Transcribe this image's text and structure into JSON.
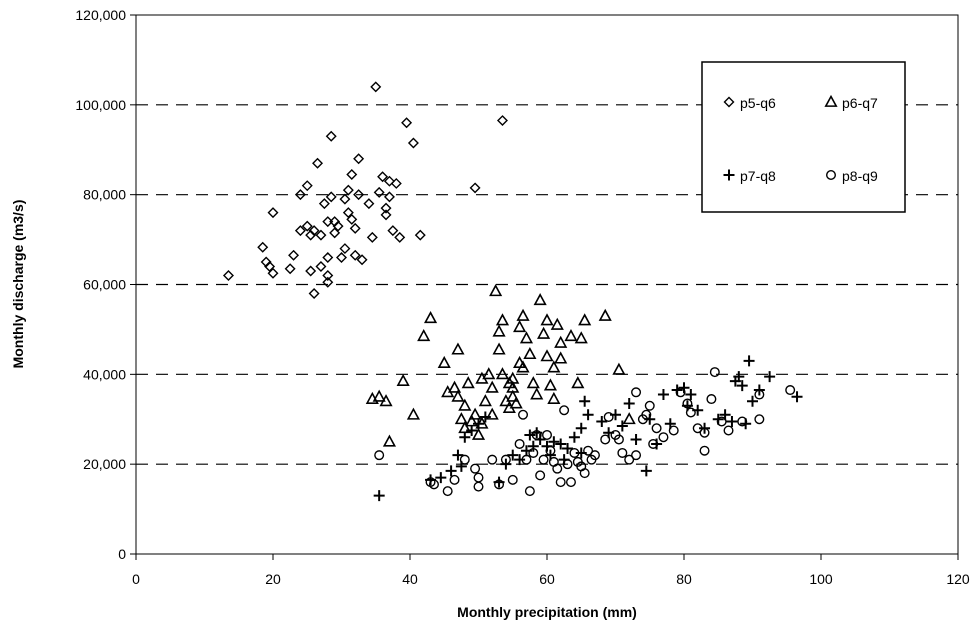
{
  "chart_data": {
    "type": "scatter",
    "title": "",
    "xlabel": "Monthly precipitation  (mm)",
    "ylabel": "Monthly discharge (m3/s)",
    "xlim": [
      0,
      120
    ],
    "ylim": [
      0,
      120000
    ],
    "x_ticks": [
      "0",
      "20",
      "40",
      "60",
      "80",
      "100",
      "120"
    ],
    "y_ticks": [
      "0",
      "20,000",
      "40,000",
      "60,000",
      "80,000",
      "100,000",
      "120,000"
    ],
    "grid": "horizontal dashed",
    "legend_position": "top-right",
    "series": [
      {
        "name": "p5-q6",
        "marker": "diamond",
        "points": [
          [
            13.5,
            62000
          ],
          [
            18.5,
            68300
          ],
          [
            19,
            65000
          ],
          [
            19.5,
            64000
          ],
          [
            20,
            62500
          ],
          [
            20,
            76000
          ],
          [
            22.5,
            63500
          ],
          [
            23,
            66500
          ],
          [
            24,
            80000
          ],
          [
            24,
            72000
          ],
          [
            25,
            82000
          ],
          [
            25,
            73000
          ],
          [
            25.5,
            71000
          ],
          [
            25.5,
            63000
          ],
          [
            26,
            58000
          ],
          [
            26,
            72000
          ],
          [
            26.5,
            87000
          ],
          [
            27,
            64000
          ],
          [
            27,
            71000
          ],
          [
            27.5,
            78000
          ],
          [
            28,
            74000
          ],
          [
            28,
            66000
          ],
          [
            28,
            62000
          ],
          [
            28,
            60500
          ],
          [
            28.5,
            93000
          ],
          [
            28.5,
            79500
          ],
          [
            29,
            71500
          ],
          [
            29,
            74000
          ],
          [
            29.5,
            73000
          ],
          [
            30,
            66000
          ],
          [
            30.5,
            68000
          ],
          [
            30.5,
            79000
          ],
          [
            31,
            81000
          ],
          [
            31,
            76000
          ],
          [
            31.5,
            74500
          ],
          [
            31.5,
            84500
          ],
          [
            32,
            72500
          ],
          [
            32,
            66500
          ],
          [
            32.5,
            80000
          ],
          [
            32.5,
            88000
          ],
          [
            33,
            65500
          ],
          [
            34,
            78000
          ],
          [
            34.5,
            70500
          ],
          [
            35,
            104000
          ],
          [
            35.5,
            80500
          ],
          [
            36,
            84000
          ],
          [
            36.5,
            75500
          ],
          [
            36.5,
            77000
          ],
          [
            37,
            83000
          ],
          [
            37,
            79500
          ],
          [
            37.5,
            72000
          ],
          [
            38,
            82500
          ],
          [
            38.5,
            70500
          ],
          [
            39.5,
            96000
          ],
          [
            40.5,
            91500
          ],
          [
            41.5,
            71000
          ],
          [
            49.5,
            81500
          ],
          [
            53.5,
            96500
          ]
        ]
      },
      {
        "name": "p6-q7",
        "marker": "triangle",
        "points": [
          [
            34.5,
            34500
          ],
          [
            35.5,
            35000
          ],
          [
            36.5,
            34000
          ],
          [
            37,
            25000
          ],
          [
            39,
            38500
          ],
          [
            40.5,
            31000
          ],
          [
            42,
            48500
          ],
          [
            43,
            52500
          ],
          [
            45,
            42500
          ],
          [
            45.5,
            36000
          ],
          [
            46.5,
            37000
          ],
          [
            47,
            45500
          ],
          [
            47,
            35000
          ],
          [
            47.5,
            30000
          ],
          [
            48,
            28000
          ],
          [
            48,
            33000
          ],
          [
            48.5,
            38000
          ],
          [
            49,
            29500
          ],
          [
            49.5,
            31000
          ],
          [
            50,
            26500
          ],
          [
            50.5,
            29000
          ],
          [
            50.5,
            39000
          ],
          [
            51,
            34000
          ],
          [
            51.5,
            40000
          ],
          [
            52,
            31000
          ],
          [
            52,
            37000
          ],
          [
            52.5,
            58500
          ],
          [
            53,
            45500
          ],
          [
            53,
            49500
          ],
          [
            53.5,
            40000
          ],
          [
            53.5,
            52000
          ],
          [
            54,
            34000
          ],
          [
            54.5,
            32500
          ],
          [
            54.5,
            38000
          ],
          [
            55,
            39000
          ],
          [
            55,
            37000
          ],
          [
            55,
            35000
          ],
          [
            55.5,
            33500
          ],
          [
            56,
            50500
          ],
          [
            56,
            42500
          ],
          [
            56.5,
            53000
          ],
          [
            56.5,
            41500
          ],
          [
            57,
            48000
          ],
          [
            57.5,
            44500
          ],
          [
            58,
            38000
          ],
          [
            58.5,
            35500
          ],
          [
            59,
            56500
          ],
          [
            59.5,
            49000
          ],
          [
            60,
            52000
          ],
          [
            60,
            44000
          ],
          [
            60.5,
            37500
          ],
          [
            61,
            41500
          ],
          [
            61,
            34500
          ],
          [
            61.5,
            51000
          ],
          [
            62,
            43500
          ],
          [
            62,
            47000
          ],
          [
            63.5,
            48500
          ],
          [
            64.5,
            38000
          ],
          [
            65,
            48000
          ],
          [
            65.5,
            52000
          ],
          [
            68.5,
            53000
          ],
          [
            70.5,
            41000
          ],
          [
            72,
            30000
          ]
        ]
      },
      {
        "name": "p7-q8",
        "marker": "plus",
        "points": [
          [
            35.5,
            13000
          ],
          [
            43,
            16500
          ],
          [
            44.5,
            17000
          ],
          [
            46,
            18500
          ],
          [
            47,
            22000
          ],
          [
            47.5,
            19500
          ],
          [
            48,
            26000
          ],
          [
            49,
            27500
          ],
          [
            50,
            29000
          ],
          [
            51,
            30500
          ],
          [
            53,
            16000
          ],
          [
            54,
            20000
          ],
          [
            55,
            22000
          ],
          [
            56,
            21000
          ],
          [
            57,
            23000
          ],
          [
            57.5,
            26500
          ],
          [
            58,
            24000
          ],
          [
            58.5,
            27000
          ],
          [
            59,
            25500
          ],
          [
            60,
            24000
          ],
          [
            60.5,
            22000
          ],
          [
            61,
            25000
          ],
          [
            62,
            24500
          ],
          [
            62.5,
            21000
          ],
          [
            63,
            23500
          ],
          [
            64,
            26000
          ],
          [
            65,
            28000
          ],
          [
            65,
            22500
          ],
          [
            65.5,
            34000
          ],
          [
            66,
            31000
          ],
          [
            68,
            29500
          ],
          [
            69,
            27000
          ],
          [
            70,
            31000
          ],
          [
            71,
            28500
          ],
          [
            72,
            33500
          ],
          [
            73,
            25500
          ],
          [
            74.5,
            18500
          ],
          [
            75,
            30000
          ],
          [
            76,
            24500
          ],
          [
            77,
            35500
          ],
          [
            78,
            29000
          ],
          [
            79,
            36500
          ],
          [
            80,
            37000
          ],
          [
            80.5,
            33000
          ],
          [
            81,
            35500
          ],
          [
            82,
            32000
          ],
          [
            83,
            28000
          ],
          [
            85,
            30000
          ],
          [
            86,
            31000
          ],
          [
            87,
            29500
          ],
          [
            87.5,
            38500
          ],
          [
            88,
            39500
          ],
          [
            88.5,
            37500
          ],
          [
            89,
            29000
          ],
          [
            89.5,
            43000
          ],
          [
            90,
            34000
          ],
          [
            91,
            36500
          ],
          [
            92.5,
            39500
          ],
          [
            96.5,
            35000
          ]
        ]
      },
      {
        "name": "p8-q9",
        "marker": "circle",
        "points": [
          [
            35.5,
            22000
          ],
          [
            43,
            16000
          ],
          [
            43.5,
            15500
          ],
          [
            45.5,
            14000
          ],
          [
            46.5,
            16500
          ],
          [
            48,
            21000
          ],
          [
            49.5,
            19000
          ],
          [
            50,
            15000
          ],
          [
            50,
            17000
          ],
          [
            52,
            21000
          ],
          [
            53,
            15500
          ],
          [
            54,
            21000
          ],
          [
            55,
            16500
          ],
          [
            56,
            24500
          ],
          [
            56.5,
            31000
          ],
          [
            57,
            21000
          ],
          [
            57.5,
            14000
          ],
          [
            58,
            22500
          ],
          [
            58.5,
            26500
          ],
          [
            59,
            17500
          ],
          [
            59.5,
            21000
          ],
          [
            60,
            26500
          ],
          [
            60.5,
            23000
          ],
          [
            61,
            20500
          ],
          [
            61.5,
            19000
          ],
          [
            62,
            16000
          ],
          [
            62.5,
            32000
          ],
          [
            63,
            20000
          ],
          [
            63.5,
            16000
          ],
          [
            64,
            22500
          ],
          [
            64.5,
            20500
          ],
          [
            65,
            19500
          ],
          [
            65.5,
            18000
          ],
          [
            66,
            23000
          ],
          [
            66.5,
            21000
          ],
          [
            67,
            22000
          ],
          [
            68.5,
            25500
          ],
          [
            69,
            30500
          ],
          [
            70,
            26500
          ],
          [
            70.5,
            25500
          ],
          [
            71,
            22500
          ],
          [
            72,
            21000
          ],
          [
            73,
            22000
          ],
          [
            73,
            36000
          ],
          [
            74,
            30000
          ],
          [
            74.5,
            31000
          ],
          [
            75,
            33000
          ],
          [
            75.5,
            24500
          ],
          [
            76,
            28000
          ],
          [
            77,
            26000
          ],
          [
            78.5,
            27500
          ],
          [
            79.5,
            36000
          ],
          [
            80.5,
            33500
          ],
          [
            81,
            31500
          ],
          [
            82,
            28000
          ],
          [
            83,
            27000
          ],
          [
            83,
            23000
          ],
          [
            84,
            34500
          ],
          [
            84.5,
            40500
          ],
          [
            85.5,
            29500
          ],
          [
            86.5,
            27500
          ],
          [
            88.5,
            29500
          ],
          [
            91,
            30000
          ],
          [
            91,
            35500
          ],
          [
            95.5,
            36500
          ]
        ]
      }
    ]
  }
}
